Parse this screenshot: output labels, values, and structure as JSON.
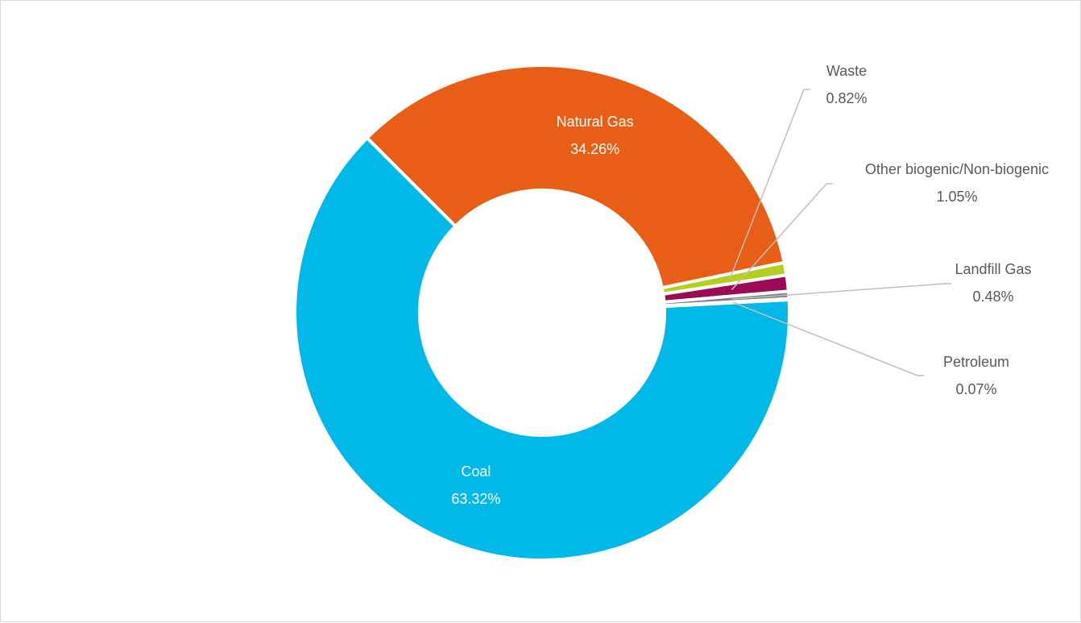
{
  "chart_data": {
    "type": "pie",
    "donut": true,
    "legend": "none",
    "series": [
      {
        "name": "Coal",
        "value": 63.32,
        "label": "63.32%",
        "color": "#00b9e8"
      },
      {
        "name": "Natural Gas",
        "value": 34.26,
        "label": "34.26%",
        "color": "#e95e16"
      },
      {
        "name": "Waste",
        "value": 0.82,
        "label": "0.82%",
        "color": "#b4d01e"
      },
      {
        "name": "Other biogenic/Non-biogenic",
        "value": 1.05,
        "label": "1.05%",
        "color": "#9b0a55"
      },
      {
        "name": "Landfill Gas",
        "value": 0.48,
        "label": "0.48%",
        "color": "#7f7f7f"
      },
      {
        "name": "Petroleum",
        "value": 0.07,
        "label": "0.07%",
        "color": "#2f5597"
      }
    ]
  }
}
